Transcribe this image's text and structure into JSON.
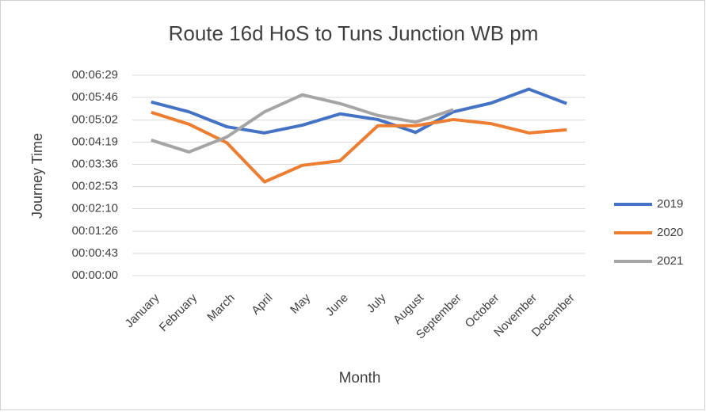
{
  "chart_data": {
    "type": "line",
    "title": "Route 16d HoS to Tuns Junction WB pm",
    "xlabel": "Month",
    "ylabel": "Journey Time",
    "categories": [
      "January",
      "February",
      "March",
      "April",
      "May",
      "June",
      "July",
      "August",
      "September",
      "October",
      "November",
      "December"
    ],
    "series": [
      {
        "name": "2019",
        "color": "#4472c4",
        "values": [
          337,
          318,
          289,
          277,
          292,
          314,
          303,
          278,
          318,
          335,
          362,
          334
        ]
      },
      {
        "name": "2020",
        "color": "#ed7d31",
        "values": [
          317,
          294,
          258,
          182,
          214,
          223,
          291,
          291,
          303,
          295,
          277,
          283
        ]
      },
      {
        "name": "2021",
        "color": "#a5a5a5",
        "values": [
          263,
          240,
          269,
          318,
          351,
          334,
          311,
          298,
          322,
          null,
          null,
          null
        ]
      }
    ],
    "ylim": [
      0,
      389
    ],
    "yticks": [
      {
        "value": 0,
        "label": "00:00:00"
      },
      {
        "value": 43,
        "label": "00:00:43"
      },
      {
        "value": 86,
        "label": "00:01:26"
      },
      {
        "value": 130,
        "label": "00:02:10"
      },
      {
        "value": 173,
        "label": "00:02:53"
      },
      {
        "value": 216,
        "label": "00:03:36"
      },
      {
        "value": 259,
        "label": "00:04:19"
      },
      {
        "value": 302,
        "label": "00:05:02"
      },
      {
        "value": 346,
        "label": "00:05:46"
      },
      {
        "value": 389,
        "label": "00:06:29"
      }
    ],
    "grid": true,
    "legend": "right"
  }
}
